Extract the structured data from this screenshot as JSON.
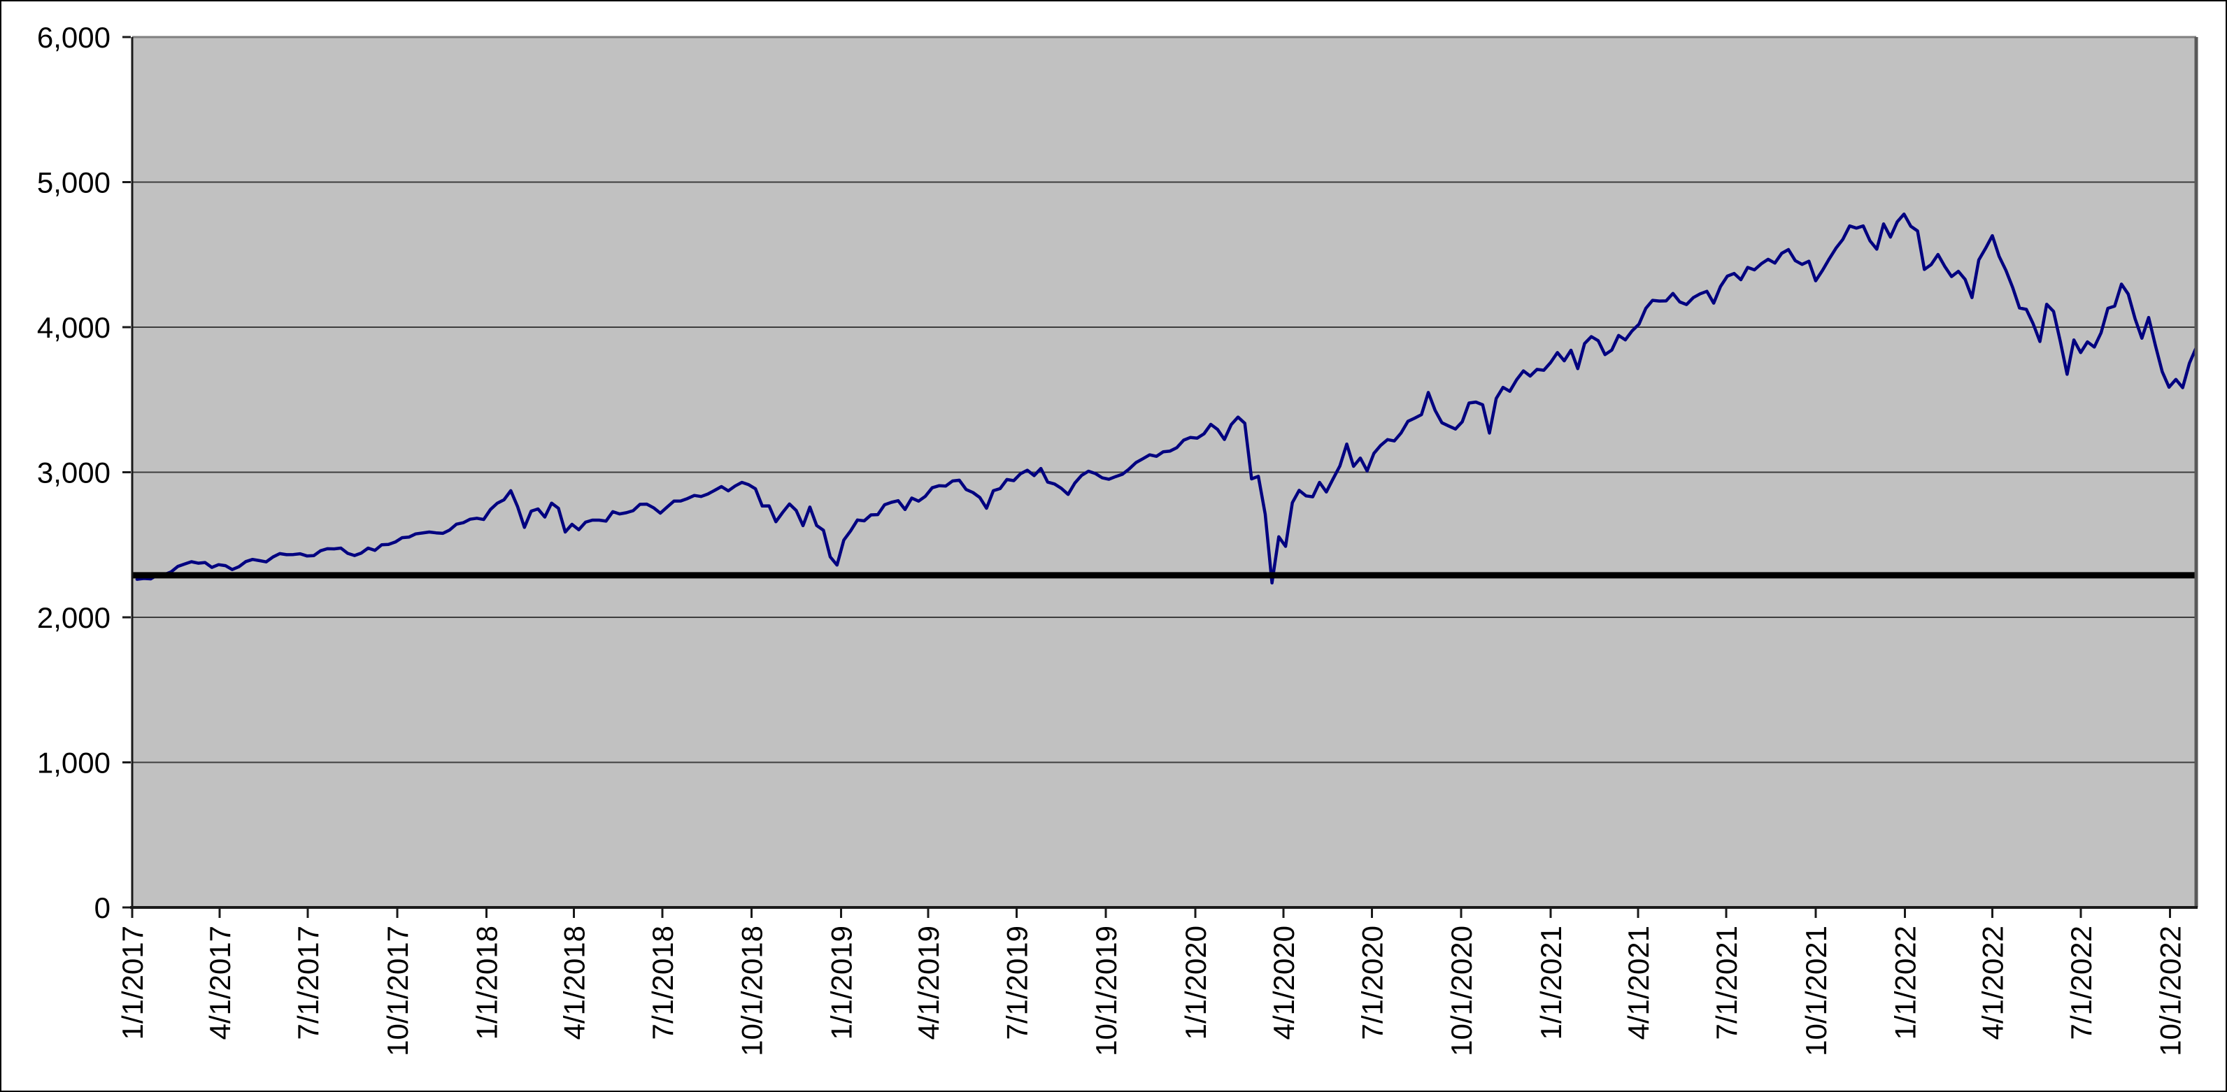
{
  "chart_data": {
    "type": "line",
    "title": "",
    "xlabel": "",
    "ylabel": "",
    "grid": true,
    "legend": "none",
    "x_axis": {
      "start_date": "1/1/2017",
      "end_date": "10/28/2022",
      "tick_interval": "3 months",
      "tick_labels": [
        "1/1/2017",
        "4/1/2017",
        "7/1/2017",
        "10/1/2017",
        "1/1/2018",
        "4/1/2018",
        "7/1/2018",
        "10/1/2018",
        "1/1/2019",
        "4/1/2019",
        "7/1/2019",
        "10/1/2019",
        "1/1/2020",
        "4/1/2020",
        "7/1/2020",
        "10/1/2020",
        "1/1/2021",
        "4/1/2021",
        "7/1/2021",
        "10/1/2021",
        "1/1/2022",
        "4/1/2022",
        "7/1/2022",
        "10/1/2022"
      ]
    },
    "y_axis": {
      "range": [
        0,
        6000
      ],
      "ticks": [
        0,
        1000,
        2000,
        3000,
        4000,
        5000,
        6000
      ],
      "tick_labels": [
        "0",
        "1,000",
        "2,000",
        "3,000",
        "4,000",
        "5,000",
        "6,000"
      ]
    },
    "series": [
      {
        "name": "daily-close-line",
        "color": "#000080",
        "stroke_width": 4.5,
        "sampling": {
          "start_date": "1/6/2017",
          "step_days": 7
        },
        "values": [
          2262,
          2268,
          2265,
          2292,
          2294,
          2313,
          2351,
          2367,
          2383,
          2373,
          2378,
          2344,
          2363,
          2356,
          2329,
          2349,
          2384,
          2399,
          2391,
          2382,
          2416,
          2439,
          2432,
          2433,
          2438,
          2423,
          2425,
          2459,
          2473,
          2472,
          2477,
          2441,
          2426,
          2443,
          2477,
          2461,
          2500,
          2502,
          2519,
          2549,
          2553,
          2575,
          2581,
          2588,
          2582,
          2579,
          2602,
          2642,
          2652,
          2676,
          2683,
          2674,
          2743,
          2786,
          2810,
          2873,
          2762,
          2620,
          2732,
          2747,
          2691,
          2787,
          2752,
          2588,
          2641,
          2604,
          2656,
          2670,
          2670,
          2663,
          2728,
          2713,
          2721,
          2735,
          2779,
          2780,
          2755,
          2718,
          2760,
          2801,
          2802,
          2819,
          2840,
          2833,
          2850,
          2875,
          2901,
          2872,
          2905,
          2930,
          2914,
          2886,
          2767,
          2768,
          2659,
          2723,
          2781,
          2736,
          2632,
          2760,
          2633,
          2600,
          2417,
          2360,
          2532,
          2596,
          2671,
          2665,
          2706,
          2708,
          2776,
          2793,
          2804,
          2743,
          2822,
          2801,
          2834,
          2893,
          2907,
          2905,
          2940,
          2945,
          2881,
          2860,
          2826,
          2752,
          2873,
          2887,
          2950,
          2942,
          2990,
          3014,
          2977,
          3026,
          2932,
          2919,
          2889,
          2847,
          2926,
          2979,
          3007,
          2992,
          2962,
          2952,
          2970,
          2986,
          3023,
          3067,
          3093,
          3120,
          3110,
          3141,
          3146,
          3169,
          3221,
          3240,
          3235,
          3265,
          3330,
          3295,
          3226,
          3328,
          3380,
          3338,
          2954,
          2972,
          2711,
          2237,
          2555,
          2489,
          2790,
          2875,
          2837,
          2831,
          2930,
          2864,
          2955,
          3044,
          3194,
          3041,
          3098,
          3009,
          3130,
          3185,
          3225,
          3216,
          3271,
          3351,
          3373,
          3397,
          3550,
          3427,
          3341,
          3319,
          3298,
          3348,
          3477,
          3484,
          3465,
          3270,
          3509,
          3585,
          3558,
          3638,
          3699,
          3663,
          3709,
          3703,
          3756,
          3825,
          3768,
          3841,
          3714,
          3887,
          3935,
          3907,
          3811,
          3842,
          3943,
          3913,
          3975,
          4020,
          4129,
          4185,
          4180,
          4181,
          4233,
          4174,
          4156,
          4204,
          4230,
          4247,
          4166,
          4281,
          4352,
          4370,
          4327,
          4412,
          4395,
          4437,
          4468,
          4442,
          4509,
          4535,
          4459,
          4433,
          4455,
          4320,
          4391,
          4471,
          4545,
          4605,
          4698,
          4683,
          4698,
          4595,
          4538,
          4712,
          4621,
          4726,
          4780,
          4696,
          4663,
          4398,
          4432,
          4501,
          4419,
          4349,
          4385,
          4329,
          4204,
          4463,
          4543,
          4631,
          4488,
          4392,
          4272,
          4132,
          4123,
          4024,
          3901,
          4158,
          4109,
          3901,
          3675,
          3912,
          3825,
          3899,
          3863,
          3962,
          4130,
          4145,
          4297,
          4228,
          4058,
          3924,
          4067,
          3873,
          3693,
          3586,
          3640,
          3583,
          3752,
          3860
        ]
      },
      {
        "name": "reference-level-line",
        "color": "#000000",
        "stroke_width": 9,
        "constant_value": 2290
      }
    ],
    "plot_background": "#c1c1c1"
  },
  "colors": {
    "page_background": "#ffffff",
    "chart_outer_border": "#000000",
    "plot_background": "#c1c1c1",
    "gridline": "#3d3d3d",
    "axis_line": "#1a1a1a",
    "plot_border_top": "#808080",
    "plot_border_right": "#595959",
    "tick_mark": "#1a1a1a",
    "tick_label": "#000000",
    "series_line": "#000080",
    "reference_line": "#000000"
  }
}
